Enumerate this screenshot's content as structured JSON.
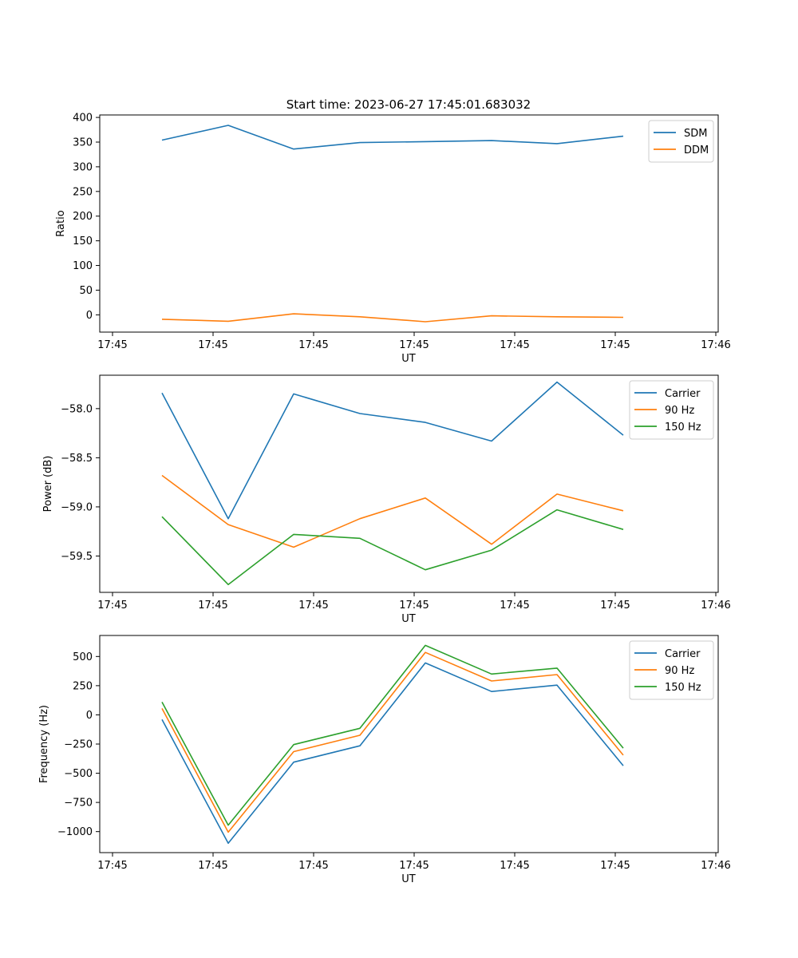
{
  "figure": {
    "title": "Start time: 2023-06-27 17:45:01.683032"
  },
  "chart_data": [
    {
      "type": "line",
      "xlabel": "UT",
      "ylabel": "Ratio",
      "x_tick_labels": [
        "17:45",
        "17:45",
        "17:45",
        "17:45",
        "17:45",
        "17:45",
        "17:46"
      ],
      "y_ticks": [
        0,
        50,
        100,
        150,
        200,
        250,
        300,
        350,
        400
      ],
      "y_tick_labels": [
        "0",
        "50",
        "100",
        "150",
        "200",
        "250",
        "300",
        "350",
        "400"
      ],
      "ylim": [
        -35,
        405
      ],
      "legend_position": "top-right",
      "grid": false,
      "series": [
        {
          "name": "SDM",
          "color": "#1f77b4",
          "values": [
            354,
            384,
            336,
            349,
            351,
            353,
            347,
            362
          ]
        },
        {
          "name": "DDM",
          "color": "#ff7f0e",
          "values": [
            -9,
            -13,
            2,
            -4,
            -14,
            -2,
            -4,
            -5
          ]
        }
      ]
    },
    {
      "type": "line",
      "xlabel": "UT",
      "ylabel": "Power (dB)",
      "x_tick_labels": [
        "17:45",
        "17:45",
        "17:45",
        "17:45",
        "17:45",
        "17:45",
        "17:46"
      ],
      "y_ticks": [
        -58.0,
        -58.5,
        -59.0,
        -59.5
      ],
      "y_tick_labels": [
        "−58.0",
        "−58.5",
        "−59.0",
        "−59.5"
      ],
      "ylim": [
        -59.87,
        -57.66
      ],
      "legend_position": "top-right",
      "grid": false,
      "series": [
        {
          "name": "Carrier",
          "color": "#1f77b4",
          "values": [
            -57.84,
            -59.12,
            -57.85,
            -58.05,
            -58.14,
            -58.33,
            -57.73,
            -58.27
          ]
        },
        {
          "name": "90 Hz",
          "color": "#ff7f0e",
          "values": [
            -58.68,
            -59.18,
            -59.41,
            -59.12,
            -58.91,
            -59.38,
            -58.87,
            -59.04
          ]
        },
        {
          "name": "150 Hz",
          "color": "#2ca02c",
          "values": [
            -59.1,
            -59.79,
            -59.28,
            -59.32,
            -59.64,
            -59.44,
            -59.03,
            -59.23
          ]
        }
      ]
    },
    {
      "type": "line",
      "xlabel": "UT",
      "ylabel": "Frequency (Hz)",
      "x_tick_labels": [
        "17:45",
        "17:45",
        "17:45",
        "17:45",
        "17:45",
        "17:45",
        "17:46"
      ],
      "y_ticks": [
        500,
        250,
        0,
        -250,
        -500,
        -750,
        -1000
      ],
      "y_tick_labels": [
        "500",
        "250",
        "0",
        "−250",
        "−500",
        "−750",
        "−1000"
      ],
      "ylim": [
        -1180,
        680
      ],
      "legend_position": "top-right",
      "grid": false,
      "series": [
        {
          "name": "Carrier",
          "color": "#1f77b4",
          "values": [
            -40,
            -1100,
            -405,
            -265,
            445,
            200,
            255,
            -435
          ]
        },
        {
          "name": "90 Hz",
          "color": "#ff7f0e",
          "values": [
            55,
            -1005,
            -315,
            -175,
            535,
            290,
            345,
            -345
          ]
        },
        {
          "name": "150 Hz",
          "color": "#2ca02c",
          "values": [
            110,
            -945,
            -255,
            -115,
            595,
            350,
            400,
            -285
          ]
        }
      ]
    }
  ]
}
